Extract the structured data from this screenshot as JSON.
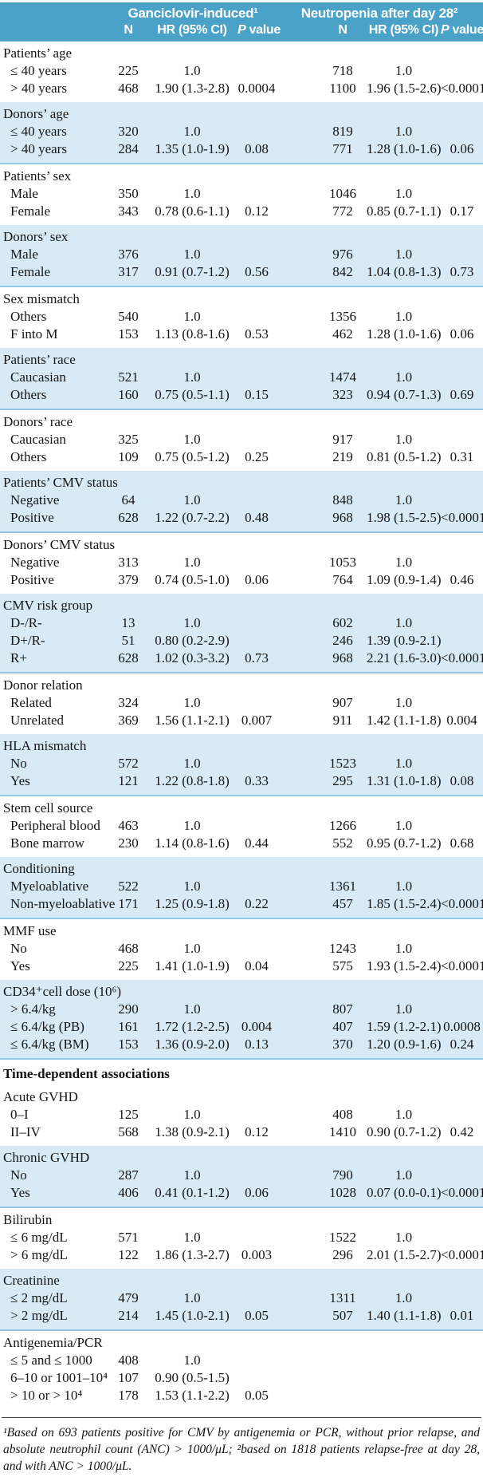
{
  "header": {
    "group1": "Ganciclovir-induced¹",
    "group2": "Neutropenia after day 28²",
    "col_n": "N",
    "col_hr": "HR (95% CI)",
    "p_italic": "P",
    "p_rest": " value"
  },
  "colors": {
    "header_bg": "#4aa2c8",
    "header_text": "#ffffff",
    "band_bg": "#d7eaf6",
    "band_line": "#93c9e4",
    "text": "#151515",
    "rule": "#444444"
  },
  "sections": [
    {
      "label": "Patients’ age",
      "shaded": false,
      "rows": [
        {
          "label": "≤ 40 years",
          "n1": "225",
          "hr1": "1.0",
          "p1": "",
          "n2": "718",
          "hr2": "1.0",
          "p2": ""
        },
        {
          "label": "> 40 years",
          "n1": "468",
          "hr1": "1.90 (1.3-2.8)",
          "p1": "0.0004",
          "n2": "1100",
          "hr2": "1.96 (1.5-2.6)",
          "p2": "<0.0001"
        }
      ]
    },
    {
      "label": "Donors’ age",
      "shaded": true,
      "rows": [
        {
          "label": "≤ 40 years",
          "n1": "320",
          "hr1": "1.0",
          "p1": "",
          "n2": "819",
          "hr2": "1.0",
          "p2": ""
        },
        {
          "label": "> 40 years",
          "n1": "284",
          "hr1": "1.35 (1.0-1.9)",
          "p1": "0.08",
          "n2": "771",
          "hr2": "1.28 (1.0-1.6)",
          "p2": "0.06"
        }
      ]
    },
    {
      "label": "Patients’ sex",
      "shaded": false,
      "rows": [
        {
          "label": "Male",
          "n1": "350",
          "hr1": "1.0",
          "p1": "",
          "n2": "1046",
          "hr2": "1.0",
          "p2": ""
        },
        {
          "label": "Female",
          "n1": "343",
          "hr1": "0.78 (0.6-1.1)",
          "p1": "0.12",
          "n2": "772",
          "hr2": "0.85 (0.7-1.1)",
          "p2": "0.17"
        }
      ]
    },
    {
      "label": "Donors’ sex",
      "shaded": true,
      "rows": [
        {
          "label": "Male",
          "n1": "376",
          "hr1": "1.0",
          "p1": "",
          "n2": "976",
          "hr2": "1.0",
          "p2": ""
        },
        {
          "label": "Female",
          "n1": "317",
          "hr1": "0.91 (0.7-1.2)",
          "p1": "0.56",
          "n2": "842",
          "hr2": "1.04 (0.8-1.3)",
          "p2": "0.73"
        }
      ]
    },
    {
      "label": "Sex mismatch",
      "shaded": false,
      "rows": [
        {
          "label": "Others",
          "n1": "540",
          "hr1": "1.0",
          "p1": "",
          "n2": "1356",
          "hr2": "1.0",
          "p2": ""
        },
        {
          "label": "F into M",
          "n1": "153",
          "hr1": "1.13 (0.8-1.6)",
          "p1": "0.53",
          "n2": "462",
          "hr2": "1.28 (1.0-1.6)",
          "p2": "0.06"
        }
      ]
    },
    {
      "label": "Patients’ race",
      "shaded": true,
      "rows": [
        {
          "label": "Caucasian",
          "n1": "521",
          "hr1": "1.0",
          "p1": "",
          "n2": "1474",
          "hr2": "1.0",
          "p2": ""
        },
        {
          "label": "Others",
          "n1": "160",
          "hr1": "0.75 (0.5-1.1)",
          "p1": "0.15",
          "n2": "323",
          "hr2": "0.94 (0.7-1.3)",
          "p2": "0.69"
        }
      ]
    },
    {
      "label": "Donors’ race",
      "shaded": false,
      "rows": [
        {
          "label": "Caucasian",
          "n1": "325",
          "hr1": "1.0",
          "p1": "",
          "n2": "917",
          "hr2": "1.0",
          "p2": ""
        },
        {
          "label": "Others",
          "n1": "109",
          "hr1": "0.75 (0.5-1.2)",
          "p1": "0.25",
          "n2": "219",
          "hr2": "0.81 (0.5-1.2)",
          "p2": "0.31"
        }
      ]
    },
    {
      "label": "Patients’ CMV status",
      "shaded": true,
      "rows": [
        {
          "label": "Negative",
          "n1": "64",
          "hr1": "1.0",
          "p1": "",
          "n2": "848",
          "hr2": "1.0",
          "p2": ""
        },
        {
          "label": "Positive",
          "n1": "628",
          "hr1": "1.22 (0.7-2.2)",
          "p1": "0.48",
          "n2": "968",
          "hr2": "1.98 (1.5-2.5)",
          "p2": "<0.0001"
        }
      ]
    },
    {
      "label": "Donors’ CMV status",
      "shaded": false,
      "rows": [
        {
          "label": "Negative",
          "n1": "313",
          "hr1": "1.0",
          "p1": "",
          "n2": "1053",
          "hr2": "1.0",
          "p2": ""
        },
        {
          "label": "Positive",
          "n1": "379",
          "hr1": "0.74 (0.5-1.0)",
          "p1": "0.06",
          "n2": "764",
          "hr2": "1.09 (0.9-1.4)",
          "p2": "0.46"
        }
      ]
    },
    {
      "label": "CMV risk group",
      "shaded": true,
      "rows": [
        {
          "label": "D-/R-",
          "n1": "13",
          "hr1": "1.0",
          "p1": "",
          "n2": "602",
          "hr2": "1.0",
          "p2": ""
        },
        {
          "label": "D+/R-",
          "n1": "51",
          "hr1": "0.80 (0.2-2.9)",
          "p1": "",
          "n2": "246",
          "hr2": "1.39 (0.9-2.1)",
          "p2": ""
        },
        {
          "label": "R+",
          "n1": "628",
          "hr1": "1.02 (0.3-3.2)",
          "p1": "0.73",
          "n2": "968",
          "hr2": "2.21 (1.6-3.0)",
          "p2": "<0.0001"
        }
      ]
    },
    {
      "label": "Donor relation",
      "shaded": false,
      "rows": [
        {
          "label": "Related",
          "n1": "324",
          "hr1": "1.0",
          "p1": "",
          "n2": "907",
          "hr2": "1.0",
          "p2": ""
        },
        {
          "label": "Unrelated",
          "n1": "369",
          "hr1": "1.56 (1.1-2.1)",
          "p1": "0.007",
          "n2": "911",
          "hr2": "1.42 (1.1-1.8)",
          "p2": "0.004"
        }
      ]
    },
    {
      "label": "HLA mismatch",
      "shaded": true,
      "rows": [
        {
          "label": "No",
          "n1": "572",
          "hr1": "1.0",
          "p1": "",
          "n2": "1523",
          "hr2": "1.0",
          "p2": ""
        },
        {
          "label": "Yes",
          "n1": "121",
          "hr1": "1.22 (0.8-1.8)",
          "p1": "0.33",
          "n2": "295",
          "hr2": "1.31 (1.0-1.8)",
          "p2": "0.08"
        }
      ]
    },
    {
      "label": "Stem cell source",
      "shaded": false,
      "rows": [
        {
          "label": "Peripheral blood",
          "n1": "463",
          "hr1": "1.0",
          "p1": "",
          "n2": "1266",
          "hr2": "1.0",
          "p2": ""
        },
        {
          "label": "Bone marrow",
          "n1": "230",
          "hr1": "1.14 (0.8-1.6)",
          "p1": "0.44",
          "n2": "552",
          "hr2": "0.95 (0.7-1.2)",
          "p2": "0.68"
        }
      ]
    },
    {
      "label": "Conditioning",
      "shaded": true,
      "rows": [
        {
          "label": "Myeloablative",
          "n1": "522",
          "hr1": "1.0",
          "p1": "",
          "n2": "1361",
          "hr2": "1.0",
          "p2": ""
        },
        {
          "label": "Non-myeloablative",
          "n1": "171",
          "hr1": "1.25 (0.9-1.8)",
          "p1": "0.22",
          "n2": "457",
          "hr2": "1.85 (1.5-2.4)",
          "p2": "<0.0001"
        }
      ]
    },
    {
      "label": "MMF use",
      "shaded": false,
      "rows": [
        {
          "label": "No",
          "n1": "468",
          "hr1": "1.0",
          "p1": "",
          "n2": "1243",
          "hr2": "1.0",
          "p2": ""
        },
        {
          "label": "Yes",
          "n1": "225",
          "hr1": "1.41 (1.0-1.9)",
          "p1": "0.04",
          "n2": "575",
          "hr2": "1.93 (1.5-2.4)",
          "p2": "<0.0001"
        }
      ]
    },
    {
      "label": "CD34⁺cell dose (10⁶)",
      "shaded": true,
      "rows": [
        {
          "label": "> 6.4/kg",
          "n1": "290",
          "hr1": "1.0",
          "p1": "",
          "n2": "807",
          "hr2": "1.0",
          "p2": ""
        },
        {
          "label": "≤ 6.4/kg (PB)",
          "n1": "161",
          "hr1": "1.72 (1.2-2.5)",
          "p1": "0.004",
          "n2": "407",
          "hr2": "1.59 (1.2-2.1)",
          "p2": "0.0008"
        },
        {
          "label": "≤ 6.4/kg (BM)",
          "n1": "153",
          "hr1": "1.36 (0.9-2.0)",
          "p1": "0.13",
          "n2": "370",
          "hr2": "1.20 (0.9-1.6)",
          "p2": "0.24"
        }
      ]
    },
    {
      "label": "Time-dependent associations",
      "type": "heading",
      "shaded": false,
      "rows": []
    },
    {
      "label": "Acute GVHD",
      "shaded": false,
      "rows": [
        {
          "label": "0–I",
          "n1": "125",
          "hr1": "1.0",
          "p1": "",
          "n2": "408",
          "hr2": "1.0",
          "p2": ""
        },
        {
          "label": "II–IV",
          "n1": "568",
          "hr1": "1.38 (0.9-2.1)",
          "p1": "0.12",
          "n2": "1410",
          "hr2": "0.90 (0.7-1.2)",
          "p2": "0.42"
        }
      ]
    },
    {
      "label": "Chronic GVHD",
      "shaded": true,
      "rows": [
        {
          "label": "No",
          "n1": "287",
          "hr1": "1.0",
          "p1": "",
          "n2": "790",
          "hr2": "1.0",
          "p2": ""
        },
        {
          "label": "Yes",
          "n1": "406",
          "hr1": "0.41 (0.1-1.2)",
          "p1": "0.06",
          "n2": "1028",
          "hr2": "0.07 (0.0-0.1)",
          "p2": "<0.0001"
        }
      ]
    },
    {
      "label": "Bilirubin",
      "shaded": false,
      "rows": [
        {
          "label": "≤ 6 mg/dL",
          "n1": "571",
          "hr1": "1.0",
          "p1": "",
          "n2": "1522",
          "hr2": "1.0",
          "p2": ""
        },
        {
          "label": "> 6 mg/dL",
          "n1": "122",
          "hr1": "1.86 (1.3-2.7)",
          "p1": "0.003",
          "n2": "296",
          "hr2": "2.01 (1.5-2.7)",
          "p2": "<0.0001"
        }
      ]
    },
    {
      "label": "Creatinine",
      "shaded": true,
      "rows": [
        {
          "label": "≤ 2 mg/dL",
          "n1": "479",
          "hr1": "1.0",
          "p1": "",
          "n2": "1311",
          "hr2": "1.0",
          "p2": ""
        },
        {
          "label": "> 2 mg/dL",
          "n1": "214",
          "hr1": "1.45 (1.0-2.1)",
          "p1": "0.05",
          "n2": "507",
          "hr2": "1.40 (1.1-1.8)",
          "p2": "0.01"
        }
      ]
    },
    {
      "label": "Antigenemia/PCR",
      "shaded": false,
      "rows": [
        {
          "label": "≤ 5 and ≤ 1000",
          "n1": "408",
          "hr1": "1.0",
          "p1": "",
          "n2": "",
          "hr2": "",
          "p2": ""
        },
        {
          "label": "6–10 or 1001–10⁴",
          "n1": "107",
          "hr1": "0.90 (0.5-1.5)",
          "p1": "",
          "n2": "",
          "hr2": "",
          "p2": ""
        },
        {
          "label": "> 10 or > 10⁴",
          "n1": "178",
          "hr1": "1.53 (1.1-2.2)",
          "p1": "0.05",
          "n2": "",
          "hr2": "",
          "p2": ""
        }
      ]
    }
  ],
  "footnote": {
    "text": "¹Based on 693 patients positive for CMV by antigenemia or PCR, without prior relapse, and absolute neutrophil count (ANC) > 1000/μL; ²based on 1818 patients relapse-free at day 28, and with ANC > 1000/μL."
  }
}
